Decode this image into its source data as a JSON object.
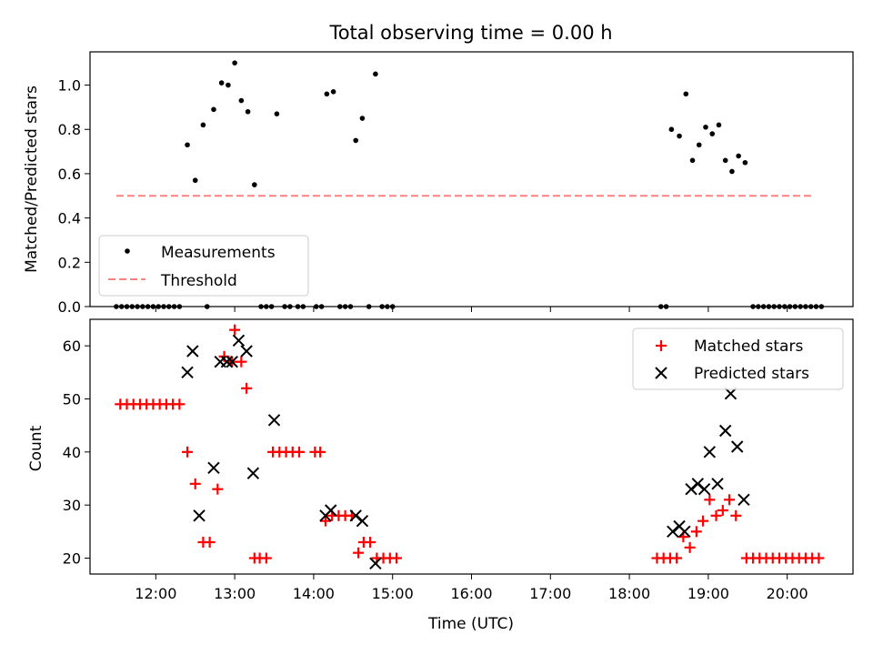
{
  "chart_data": [
    {
      "type": "scatter",
      "title": "Total observing time = 0.00 h",
      "ylabel": "Matched/Predicted stars",
      "xlabel": "",
      "ylim": [
        0,
        1.15
      ],
      "xlim": [
        "11:10",
        "20:50"
      ],
      "yticks": [
        "0.0",
        "0.2",
        "0.4",
        "0.6",
        "0.8",
        "1.0"
      ],
      "legend_position": "lower-left",
      "series": [
        {
          "name": "Measurements",
          "color": "#000000",
          "marker": "dot",
          "points": [
            [
              "11:30",
              0
            ],
            [
              "11:34",
              0
            ],
            [
              "11:38",
              0
            ],
            [
              "11:42",
              0
            ],
            [
              "11:46",
              0
            ],
            [
              "11:50",
              0
            ],
            [
              "11:54",
              0
            ],
            [
              "11:58",
              0
            ],
            [
              "12:02",
              0
            ],
            [
              "12:06",
              0
            ],
            [
              "12:10",
              0
            ],
            [
              "12:14",
              0
            ],
            [
              "12:18",
              0
            ],
            [
              "12:24",
              0.73
            ],
            [
              "12:30",
              0.57
            ],
            [
              "12:36",
              0.82
            ],
            [
              "12:39",
              0
            ],
            [
              "12:44",
              0.89
            ],
            [
              "12:50",
              1.01
            ],
            [
              "12:55",
              1.0
            ],
            [
              "13:00",
              1.1
            ],
            [
              "13:05",
              0.93
            ],
            [
              "13:10",
              0.88
            ],
            [
              "13:15",
              0.55
            ],
            [
              "13:20",
              0
            ],
            [
              "13:24",
              0
            ],
            [
              "13:28",
              0
            ],
            [
              "13:32",
              0.87
            ],
            [
              "13:38",
              0
            ],
            [
              "13:42",
              0
            ],
            [
              "13:48",
              0
            ],
            [
              "13:52",
              0
            ],
            [
              "14:02",
              0
            ],
            [
              "14:06",
              0
            ],
            [
              "14:10",
              0.96
            ],
            [
              "14:15",
              0.97
            ],
            [
              "14:20",
              0
            ],
            [
              "14:24",
              0
            ],
            [
              "14:28",
              0
            ],
            [
              "14:32",
              0.75
            ],
            [
              "14:37",
              0.85
            ],
            [
              "14:42",
              0
            ],
            [
              "14:47",
              1.05
            ],
            [
              "14:52",
              0
            ],
            [
              "14:56",
              0
            ],
            [
              "15:00",
              0
            ],
            [
              "18:24",
              0
            ],
            [
              "18:28",
              0
            ],
            [
              "18:32",
              0.8
            ],
            [
              "18:38",
              0.77
            ],
            [
              "18:43",
              0.96
            ],
            [
              "18:48",
              0.66
            ],
            [
              "18:53",
              0.73
            ],
            [
              "18:58",
              0.81
            ],
            [
              "19:03",
              0.78
            ],
            [
              "19:08",
              0.82
            ],
            [
              "19:13",
              0.66
            ],
            [
              "19:18",
              0.61
            ],
            [
              "19:23",
              0.68
            ],
            [
              "19:28",
              0.65
            ],
            [
              "19:34",
              0
            ],
            [
              "19:38",
              0
            ],
            [
              "19:42",
              0
            ],
            [
              "19:46",
              0
            ],
            [
              "19:50",
              0
            ],
            [
              "19:54",
              0
            ],
            [
              "19:58",
              0
            ],
            [
              "20:02",
              0
            ],
            [
              "20:06",
              0
            ],
            [
              "20:10",
              0
            ],
            [
              "20:14",
              0
            ],
            [
              "20:18",
              0
            ],
            [
              "20:22",
              0
            ],
            [
              "20:26",
              0
            ]
          ]
        },
        {
          "name": "Threshold",
          "color": "#ff8080",
          "style": "dashed",
          "points": [
            [
              "11:30",
              0.5
            ],
            [
              "20:20",
              0.5
            ]
          ]
        }
      ]
    },
    {
      "type": "scatter",
      "title": "",
      "ylabel": "Count",
      "xlabel": "Time (UTC)",
      "ylim": [
        17,
        65
      ],
      "xlim": [
        "11:10",
        "20:50"
      ],
      "yticks": [
        "20",
        "30",
        "40",
        "50",
        "60"
      ],
      "xticks": [
        "12:00",
        "13:00",
        "14:00",
        "15:00",
        "16:00",
        "17:00",
        "18:00",
        "19:00",
        "20:00"
      ],
      "legend_position": "upper-right",
      "series": [
        {
          "name": "Matched stars",
          "color": "#ff0000",
          "marker": "plus",
          "points": [
            [
              "11:33",
              49
            ],
            [
              "11:38",
              49
            ],
            [
              "11:43",
              49
            ],
            [
              "11:48",
              49
            ],
            [
              "11:53",
              49
            ],
            [
              "11:58",
              49
            ],
            [
              "12:03",
              49
            ],
            [
              "12:08",
              49
            ],
            [
              "12:13",
              49
            ],
            [
              "12:18",
              49
            ],
            [
              "12:24",
              40
            ],
            [
              "12:30",
              34
            ],
            [
              "12:36",
              23
            ],
            [
              "12:41",
              23
            ],
            [
              "12:47",
              33
            ],
            [
              "12:52",
              58
            ],
            [
              "12:58",
              57
            ],
            [
              "13:00",
              63
            ],
            [
              "13:05",
              57
            ],
            [
              "13:09",
              52
            ],
            [
              "13:15",
              20
            ],
            [
              "13:19",
              20
            ],
            [
              "13:24",
              20
            ],
            [
              "13:29",
              40
            ],
            [
              "13:34",
              40
            ],
            [
              "13:39",
              40
            ],
            [
              "13:44",
              40
            ],
            [
              "13:49",
              40
            ],
            [
              "14:01",
              40
            ],
            [
              "14:05",
              40
            ],
            [
              "14:09",
              27
            ],
            [
              "14:14",
              28
            ],
            [
              "14:19",
              28
            ],
            [
              "14:24",
              28
            ],
            [
              "14:29",
              28
            ],
            [
              "14:34",
              21
            ],
            [
              "14:38",
              23
            ],
            [
              "14:43",
              23
            ],
            [
              "14:48",
              20
            ],
            [
              "14:53",
              20
            ],
            [
              "14:58",
              20
            ],
            [
              "15:03",
              20
            ],
            [
              "18:21",
              20
            ],
            [
              "18:26",
              20
            ],
            [
              "18:31",
              20
            ],
            [
              "18:36",
              20
            ],
            [
              "18:41",
              24
            ],
            [
              "18:46",
              22
            ],
            [
              "18:51",
              25
            ],
            [
              "18:56",
              27
            ],
            [
              "19:01",
              31
            ],
            [
              "19:06",
              28
            ],
            [
              "19:11",
              29
            ],
            [
              "19:16",
              31
            ],
            [
              "19:21",
              28
            ],
            [
              "19:29",
              20
            ],
            [
              "19:34",
              20
            ],
            [
              "19:39",
              20
            ],
            [
              "19:44",
              20
            ],
            [
              "19:49",
              20
            ],
            [
              "19:54",
              20
            ],
            [
              "19:59",
              20
            ],
            [
              "20:04",
              20
            ],
            [
              "20:09",
              20
            ],
            [
              "20:14",
              20
            ],
            [
              "20:19",
              20
            ],
            [
              "20:24",
              20
            ]
          ]
        },
        {
          "name": "Predicted stars",
          "color": "#000000",
          "marker": "cross",
          "points": [
            [
              "12:24",
              55
            ],
            [
              "12:28",
              59
            ],
            [
              "12:33",
              28
            ],
            [
              "12:44",
              37
            ],
            [
              "12:49",
              57
            ],
            [
              "12:54",
              57
            ],
            [
              "12:58",
              57
            ],
            [
              "13:03",
              61
            ],
            [
              "13:09",
              59
            ],
            [
              "13:14",
              36
            ],
            [
              "13:30",
              46
            ],
            [
              "14:09",
              28
            ],
            [
              "14:13",
              29
            ],
            [
              "14:32",
              28
            ],
            [
              "14:37",
              27
            ],
            [
              "14:47",
              19
            ],
            [
              "18:33",
              25
            ],
            [
              "18:38",
              26
            ],
            [
              "18:42",
              25
            ],
            [
              "18:47",
              33
            ],
            [
              "18:52",
              34
            ],
            [
              "18:57",
              33
            ],
            [
              "19:01",
              40
            ],
            [
              "19:07",
              34
            ],
            [
              "19:13",
              44
            ],
            [
              "19:17",
              51
            ],
            [
              "19:22",
              41
            ],
            [
              "19:27",
              31
            ]
          ]
        }
      ]
    }
  ]
}
